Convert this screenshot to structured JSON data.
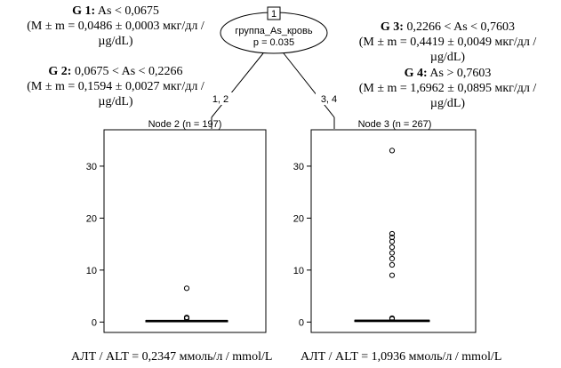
{
  "groups": {
    "g1": {
      "label": "G 1:",
      "range": "As < 0,0675",
      "stat": "(M ± m = 0,0486 ± 0,0003 мкг/дл /",
      "unit": "µg/dL)"
    },
    "g2": {
      "label": "G 2:",
      "range": "0,0675 < As < 0,2266",
      "stat": "(M ± m = 0,1594 ± 0,0027 мкг/дл /",
      "unit": "µg/dL)"
    },
    "g3": {
      "label": "G 3:",
      "range": "0,2266 < As < 0,7603",
      "stat": "(M ± m = 0,4419 ± 0,0049 мкг/дл /",
      "unit": "µg/dL)"
    },
    "g4": {
      "label": "G 4:",
      "range": "As > 0,7603",
      "stat": "(M ± m = 1,6962 ± 0,0895 мкг/дл /",
      "unit": "µg/dL)"
    }
  },
  "tree": {
    "root_id": "1",
    "root_variable": "группа_As_кровь",
    "root_p": "p = 0.035",
    "left_edge": "1, 2",
    "right_edge": "3, 4"
  },
  "captions": {
    "left": "АЛТ / ALT = 0,2347 ммоль/л / mmol/L",
    "right": "АЛТ / ALT = 1,0936 ммоль/л / mmol/L"
  },
  "chart_data": {
    "type": "boxplot",
    "ylim": [
      -2,
      37
    ],
    "yticks": [
      0,
      10,
      20,
      30
    ],
    "panels": [
      {
        "title": "Node 2 (n = 197)",
        "box": {
          "q1": 0.12,
          "median": 0.2,
          "q3": 0.3,
          "whisker_low": 0.05,
          "whisker_high": 0.5
        },
        "outliers": [
          0.7,
          0.9,
          6.5
        ]
      },
      {
        "title": "Node 3 (n = 267)",
        "box": {
          "q1": 0.15,
          "median": 0.25,
          "q3": 0.35,
          "whisker_low": 0.05,
          "whisker_high": 0.55
        },
        "outliers": [
          0.6,
          0.75,
          9.0,
          11.0,
          12.2,
          13.3,
          14.4,
          15.5,
          16.3,
          17.0,
          33.0
        ]
      }
    ]
  }
}
